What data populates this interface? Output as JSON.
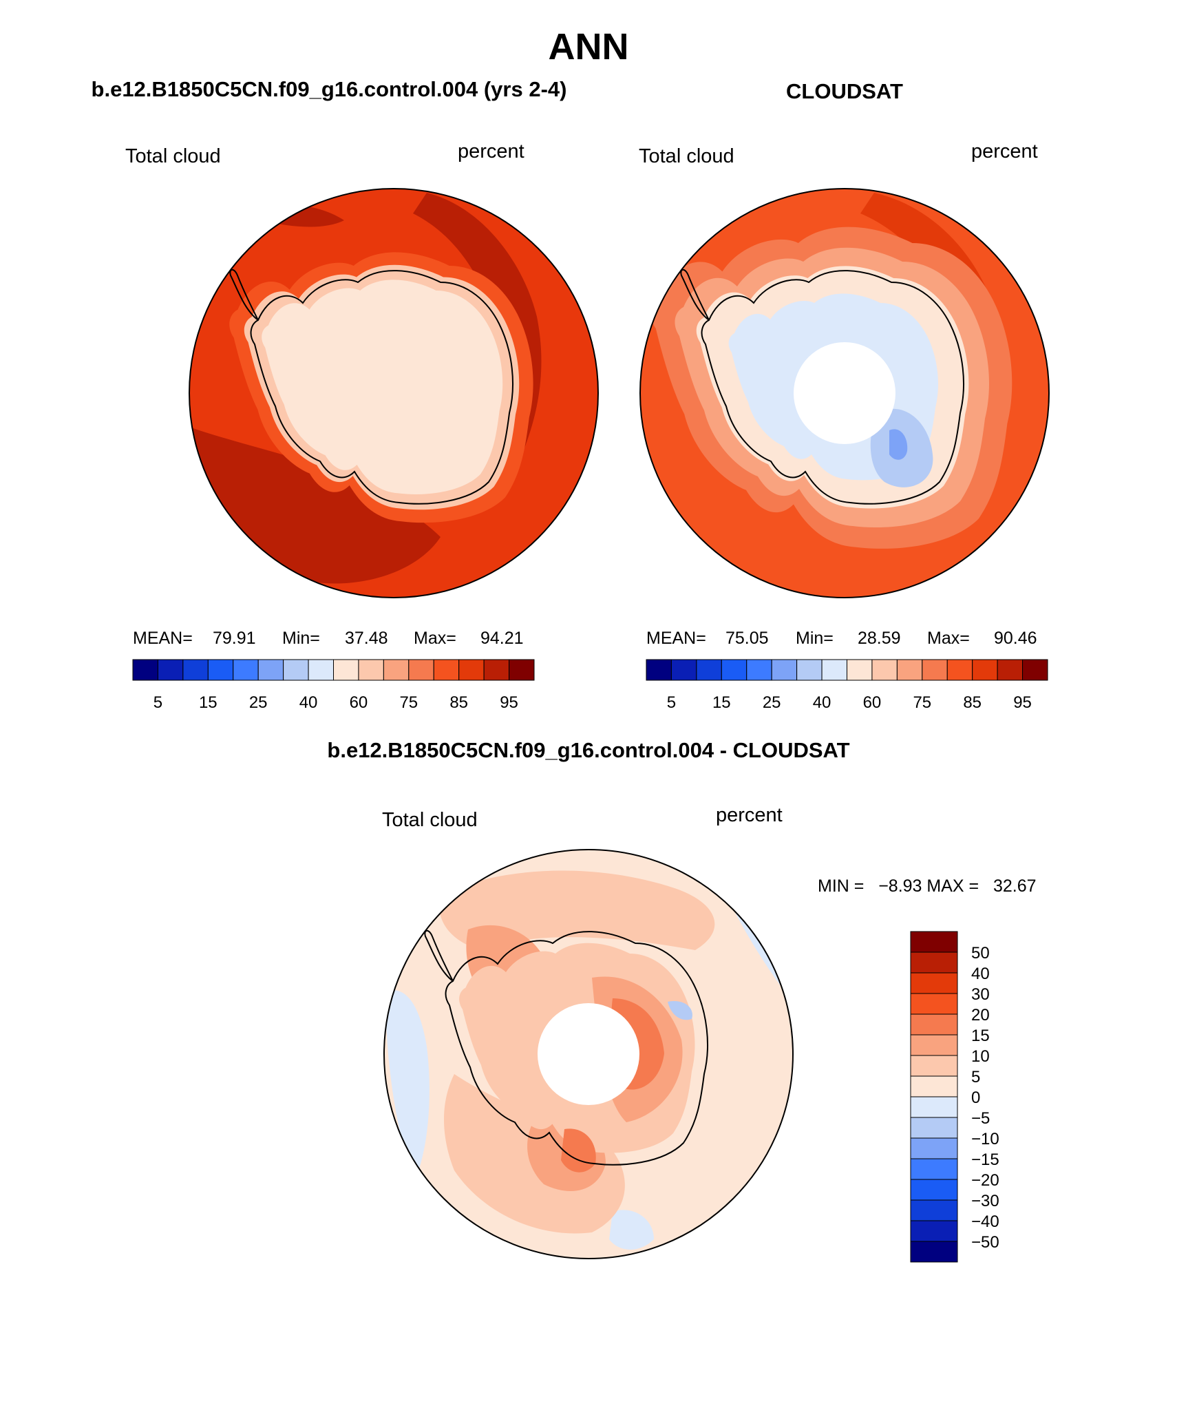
{
  "page": {
    "title": "ANN",
    "left_panel_title": "b.e12.B1850C5CN.f09_g16.control.004 (yrs 2-4)",
    "right_panel_title": "CLOUDSAT",
    "diff_panel_title": "b.e12.B1850C5CN.f09_g16.control.004 - CLOUDSAT"
  },
  "panels": {
    "model": {
      "variable_label": "Total cloud",
      "units_label": "percent",
      "stats": {
        "mean_label": "MEAN=",
        "mean": "79.91",
        "min_label": "Min=",
        "min": "37.48",
        "max_label": "Max=",
        "max": "94.21"
      }
    },
    "obs": {
      "variable_label": "Total cloud",
      "units_label": "percent",
      "stats": {
        "mean_label": "MEAN=",
        "mean": "75.05",
        "min_label": "Min=",
        "min": "28.59",
        "max_label": "Max=",
        "max": "90.46"
      }
    },
    "diff": {
      "variable_label": "Total cloud",
      "units_label": "percent",
      "minmax_text": "MIN =   −8.93 MAX =   32.67"
    }
  },
  "colorbars": {
    "abs_colors": [
      "#000080",
      "#0a1fb5",
      "#0f3fd9",
      "#1a5cf5",
      "#3d7bff",
      "#7da3f7",
      "#b4cbf5",
      "#dce9fb",
      "#fde6d6",
      "#fcc8ad",
      "#f9a37f",
      "#f57a4f",
      "#f4531f",
      "#e33a0a",
      "#b91f05",
      "#7f0000"
    ],
    "abs_tick_labels": [
      "5",
      "15",
      "25",
      "40",
      "60",
      "75",
      "85",
      "95"
    ],
    "diff_colors": [
      "#7f0000",
      "#b91f05",
      "#e33a0a",
      "#f4531f",
      "#f57a4f",
      "#f9a37f",
      "#fcc8ad",
      "#fde6d6",
      "#dce9fb",
      "#b4cbf5",
      "#7da3f7",
      "#3d7bff",
      "#1a5cf5",
      "#0f3fd9",
      "#0a1fb5",
      "#000080"
    ],
    "diff_tick_labels": [
      "50",
      "40",
      "30",
      "20",
      "15",
      "10",
      "5",
      "0",
      "−5",
      "−10",
      "−15",
      "−20",
      "−30",
      "−40",
      "−50"
    ]
  },
  "map_colors": {
    "model_ocean": "#e8380c",
    "model_high": "#b91f05",
    "model_coast_ring": "#f4531f",
    "model_interior": "#fde6d6",
    "model_interior_light": "#fcc8ad",
    "obs_ocean": "#f4531f",
    "obs_north": "#e33a0a",
    "obs_ring": "#f57a4f",
    "obs_ring2": "#f9a37f",
    "obs_interior": "#fde6d6",
    "obs_low": "#b4cbf5",
    "obs_low2": "#7da3f7",
    "obs_pale_blue": "#dce9fb",
    "diff_base": "#fde6d6",
    "diff_pos": "#fcc8ad",
    "diff_pos2": "#f9a37f",
    "diff_pos3": "#f57a4f",
    "diff_neg": "#dce9fb",
    "diff_neg2": "#b4cbf5"
  }
}
